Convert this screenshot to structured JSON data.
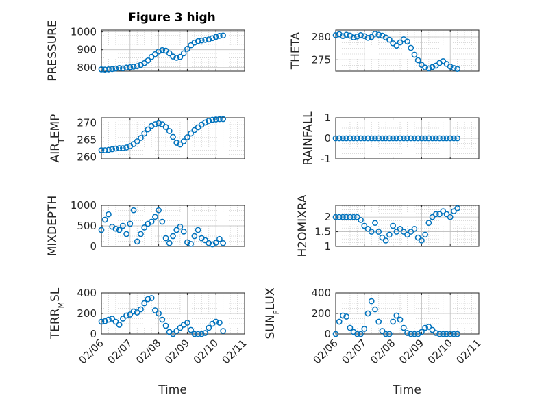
{
  "figure": {
    "title": "Figure 3 high",
    "marker_color": "#0072BD",
    "axis_color": "#262626",
    "grid": true,
    "minor_grid": true
  },
  "chart_data": [
    {
      "type": "scatter",
      "ylabel": "PRESSURE",
      "xlim": [
        "02/06",
        "02/11"
      ],
      "ylim": [
        780,
        1010
      ],
      "yticks": [
        800,
        900,
        1000
      ],
      "xticks": [],
      "x": [
        "02/06 00:00",
        "02/06 03:00",
        "02/06 06:00",
        "02/06 09:00",
        "02/06 12:00",
        "02/06 15:00",
        "02/06 18:00",
        "02/06 21:00",
        "02/07 00:00",
        "02/07 03:00",
        "02/07 06:00",
        "02/07 09:00",
        "02/07 12:00",
        "02/07 15:00",
        "02/07 18:00",
        "02/07 21:00",
        "02/08 00:00",
        "02/08 03:00",
        "02/08 06:00",
        "02/08 09:00",
        "02/08 12:00",
        "02/08 15:00",
        "02/08 18:00",
        "02/08 21:00",
        "02/09 00:00",
        "02/09 03:00",
        "02/09 06:00",
        "02/09 09:00",
        "02/09 12:00",
        "02/09 15:00",
        "02/09 18:00",
        "02/09 21:00",
        "02/10 00:00",
        "02/10 03:00",
        "02/10 06:00"
      ],
      "y": [
        790,
        789,
        790,
        792,
        795,
        798,
        796,
        800,
        802,
        805,
        808,
        815,
        825,
        840,
        860,
        875,
        890,
        898,
        895,
        880,
        862,
        855,
        860,
        880,
        905,
        925,
        940,
        948,
        952,
        955,
        958,
        965,
        972,
        978,
        980
      ]
    },
    {
      "type": "scatter",
      "ylabel": "THETA",
      "xlim": [
        "02/06",
        "02/11"
      ],
      "ylim": [
        272.5,
        281.5
      ],
      "yticks": [
        275,
        280
      ],
      "xticks": [],
      "x": [
        "02/06 00:00",
        "02/06 03:00",
        "02/06 06:00",
        "02/06 09:00",
        "02/06 12:00",
        "02/06 15:00",
        "02/06 18:00",
        "02/06 21:00",
        "02/07 00:00",
        "02/07 03:00",
        "02/07 06:00",
        "02/07 09:00",
        "02/07 12:00",
        "02/07 15:00",
        "02/07 18:00",
        "02/07 21:00",
        "02/08 00:00",
        "02/08 03:00",
        "02/08 06:00",
        "02/08 09:00",
        "02/08 12:00",
        "02/08 15:00",
        "02/08 18:00",
        "02/08 21:00",
        "02/09 00:00",
        "02/09 03:00",
        "02/09 06:00",
        "02/09 09:00",
        "02/09 12:00",
        "02/09 15:00",
        "02/09 18:00",
        "02/09 21:00",
        "02/10 00:00",
        "02/10 03:00",
        "02/10 06:00"
      ],
      "y": [
        280.4,
        280.6,
        280.2,
        280.5,
        280.3,
        279.9,
        280.1,
        280.4,
        280.2,
        279.8,
        280.0,
        280.7,
        280.5,
        280.3,
        279.9,
        279.4,
        278.6,
        278.1,
        278.8,
        279.5,
        279.0,
        277.6,
        276.1,
        274.9,
        273.9,
        273.3,
        273.1,
        273.4,
        273.7,
        274.3,
        274.7,
        274.1,
        273.5,
        273.2,
        273.0
      ]
    },
    {
      "type": "scatter",
      "ylabel": "AIR_TEMP",
      "xlim": [
        "02/06",
        "02/11"
      ],
      "ylim": [
        259.5,
        271.5
      ],
      "yticks": [
        260,
        265,
        270
      ],
      "xticks": [],
      "x": [
        "02/06 00:00",
        "02/06 03:00",
        "02/06 06:00",
        "02/06 09:00",
        "02/06 12:00",
        "02/06 15:00",
        "02/06 18:00",
        "02/06 21:00",
        "02/07 00:00",
        "02/07 03:00",
        "02/07 06:00",
        "02/07 09:00",
        "02/07 12:00",
        "02/07 15:00",
        "02/07 18:00",
        "02/07 21:00",
        "02/08 00:00",
        "02/08 03:00",
        "02/08 06:00",
        "02/08 09:00",
        "02/08 12:00",
        "02/08 15:00",
        "02/08 18:00",
        "02/08 21:00",
        "02/09 00:00",
        "02/09 03:00",
        "02/09 06:00",
        "02/09 09:00",
        "02/09 12:00",
        "02/09 15:00",
        "02/09 18:00",
        "02/09 21:00",
        "02/10 00:00",
        "02/10 03:00",
        "02/10 06:00"
      ],
      "y": [
        262.0,
        262.0,
        262.1,
        262.3,
        262.5,
        262.6,
        262.6,
        262.8,
        263.2,
        263.8,
        264.6,
        265.6,
        266.9,
        268.1,
        269.1,
        269.6,
        269.9,
        269.6,
        268.8,
        267.6,
        265.9,
        264.2,
        263.7,
        264.6,
        265.8,
        266.9,
        267.9,
        268.7,
        269.5,
        270.1,
        270.6,
        270.9,
        271.0,
        271.1,
        271.1
      ]
    },
    {
      "type": "scatter",
      "ylabel": "RAINFALL",
      "xlim": [
        "02/06",
        "02/11"
      ],
      "ylim": [
        -1,
        1
      ],
      "yticks": [
        -1,
        0,
        1
      ],
      "xticks": [],
      "x": [
        "02/06 00:00",
        "02/06 03:00",
        "02/06 06:00",
        "02/06 09:00",
        "02/06 12:00",
        "02/06 15:00",
        "02/06 18:00",
        "02/06 21:00",
        "02/07 00:00",
        "02/07 03:00",
        "02/07 06:00",
        "02/07 09:00",
        "02/07 12:00",
        "02/07 15:00",
        "02/07 18:00",
        "02/07 21:00",
        "02/08 00:00",
        "02/08 03:00",
        "02/08 06:00",
        "02/08 09:00",
        "02/08 12:00",
        "02/08 15:00",
        "02/08 18:00",
        "02/08 21:00",
        "02/09 00:00",
        "02/09 03:00",
        "02/09 06:00",
        "02/09 09:00",
        "02/09 12:00",
        "02/09 15:00",
        "02/09 18:00",
        "02/09 21:00",
        "02/10 00:00",
        "02/10 03:00",
        "02/10 06:00"
      ],
      "y": [
        0,
        0,
        0,
        0,
        0,
        0,
        0,
        0,
        0,
        0,
        0,
        0,
        0,
        0,
        0,
        0,
        0,
        0,
        0,
        0,
        0,
        0,
        0,
        0,
        0,
        0,
        0,
        0,
        0,
        0,
        0,
        0,
        0,
        0,
        0
      ]
    },
    {
      "type": "scatter",
      "ylabel": "MIXDEPTH",
      "xlim": [
        "02/06",
        "02/11"
      ],
      "ylim": [
        0,
        1000
      ],
      "yticks": [
        0,
        500,
        1000
      ],
      "xticks": [],
      "x": [
        "02/06 00:00",
        "02/06 03:00",
        "02/06 06:00",
        "02/06 09:00",
        "02/06 12:00",
        "02/06 15:00",
        "02/06 18:00",
        "02/06 21:00",
        "02/07 00:00",
        "02/07 03:00",
        "02/07 06:00",
        "02/07 09:00",
        "02/07 12:00",
        "02/07 15:00",
        "02/07 18:00",
        "02/07 21:00",
        "02/08 00:00",
        "02/08 03:00",
        "02/08 06:00",
        "02/08 09:00",
        "02/08 12:00",
        "02/08 15:00",
        "02/08 18:00",
        "02/08 21:00",
        "02/09 00:00",
        "02/09 03:00",
        "02/09 06:00",
        "02/09 09:00",
        "02/09 12:00",
        "02/09 15:00",
        "02/09 18:00",
        "02/09 21:00",
        "02/10 00:00",
        "02/10 03:00",
        "02/10 06:00"
      ],
      "y": [
        400,
        650,
        780,
        480,
        430,
        400,
        500,
        300,
        550,
        880,
        120,
        300,
        460,
        550,
        600,
        720,
        880,
        600,
        200,
        80,
        250,
        400,
        480,
        360,
        100,
        60,
        250,
        400,
        200,
        150,
        80,
        50,
        90,
        180,
        80
      ]
    },
    {
      "type": "scatter",
      "ylabel": "H2OMIXRA",
      "xlim": [
        "02/06",
        "02/11"
      ],
      "ylim": [
        1,
        2.4
      ],
      "yticks": [
        1,
        1.5,
        2
      ],
      "xticks": [],
      "x": [
        "02/06 00:00",
        "02/06 03:00",
        "02/06 06:00",
        "02/06 09:00",
        "02/06 12:00",
        "02/06 15:00",
        "02/06 18:00",
        "02/06 21:00",
        "02/07 00:00",
        "02/07 03:00",
        "02/07 06:00",
        "02/07 09:00",
        "02/07 12:00",
        "02/07 15:00",
        "02/07 18:00",
        "02/07 21:00",
        "02/08 00:00",
        "02/08 03:00",
        "02/08 06:00",
        "02/08 09:00",
        "02/08 12:00",
        "02/08 15:00",
        "02/08 18:00",
        "02/08 21:00",
        "02/09 00:00",
        "02/09 03:00",
        "02/09 06:00",
        "02/09 09:00",
        "02/09 12:00",
        "02/09 15:00",
        "02/09 18:00",
        "02/09 21:00",
        "02/10 00:00",
        "02/10 03:00",
        "02/10 06:00"
      ],
      "y": [
        2.0,
        2.0,
        2.0,
        2.0,
        2.0,
        2.0,
        2.0,
        1.9,
        1.7,
        1.6,
        1.5,
        1.8,
        1.5,
        1.3,
        1.2,
        1.4,
        1.7,
        1.5,
        1.6,
        1.5,
        1.4,
        1.5,
        1.6,
        1.3,
        1.2,
        1.4,
        1.8,
        2.0,
        2.1,
        2.1,
        2.2,
        2.1,
        2.0,
        2.2,
        2.3
      ]
    },
    {
      "type": "scatter",
      "ylabel": "TERR_MSL",
      "xlim": [
        "02/06",
        "02/11"
      ],
      "ylim": [
        0,
        400
      ],
      "yticks": [
        0,
        200,
        400
      ],
      "xticks": [
        "02/06",
        "02/07",
        "02/08",
        "02/09",
        "02/10",
        "02/11"
      ],
      "xlabel": "Time",
      "x": [
        "02/06 00:00",
        "02/06 03:00",
        "02/06 06:00",
        "02/06 09:00",
        "02/06 12:00",
        "02/06 15:00",
        "02/06 18:00",
        "02/06 21:00",
        "02/07 00:00",
        "02/07 03:00",
        "02/07 06:00",
        "02/07 09:00",
        "02/07 12:00",
        "02/07 15:00",
        "02/07 18:00",
        "02/07 21:00",
        "02/08 00:00",
        "02/08 03:00",
        "02/08 06:00",
        "02/08 09:00",
        "02/08 12:00",
        "02/08 15:00",
        "02/08 18:00",
        "02/08 21:00",
        "02/09 00:00",
        "02/09 03:00",
        "02/09 06:00",
        "02/09 09:00",
        "02/09 12:00",
        "02/09 15:00",
        "02/09 18:00",
        "02/09 21:00",
        "02/10 00:00",
        "02/10 03:00",
        "02/10 06:00"
      ],
      "y": [
        120,
        125,
        140,
        150,
        120,
        90,
        150,
        180,
        190,
        220,
        210,
        240,
        300,
        340,
        350,
        230,
        200,
        140,
        80,
        20,
        0,
        30,
        60,
        90,
        110,
        40,
        0,
        0,
        0,
        10,
        60,
        100,
        120,
        110,
        30
      ]
    },
    {
      "type": "scatter",
      "ylabel": "SUN_FLUX",
      "xlim": [
        "02/06",
        "02/11"
      ],
      "ylim": [
        0,
        400
      ],
      "yticks": [
        0,
        200,
        400
      ],
      "xticks": [
        "02/06",
        "02/07",
        "02/08",
        "02/09",
        "02/10",
        "02/11"
      ],
      "xlabel": "Time",
      "x": [
        "02/06 00:00",
        "02/06 03:00",
        "02/06 06:00",
        "02/06 09:00",
        "02/06 12:00",
        "02/06 15:00",
        "02/06 18:00",
        "02/06 21:00",
        "02/07 00:00",
        "02/07 03:00",
        "02/07 06:00",
        "02/07 09:00",
        "02/07 12:00",
        "02/07 15:00",
        "02/07 18:00",
        "02/07 21:00",
        "02/08 00:00",
        "02/08 03:00",
        "02/08 06:00",
        "02/08 09:00",
        "02/08 12:00",
        "02/08 15:00",
        "02/08 18:00",
        "02/08 21:00",
        "02/09 00:00",
        "02/09 03:00",
        "02/09 06:00",
        "02/09 09:00",
        "02/09 12:00",
        "02/09 15:00",
        "02/09 18:00",
        "02/09 21:00",
        "02/10 00:00",
        "02/10 03:00",
        "02/10 06:00"
      ],
      "y": [
        0,
        120,
        180,
        170,
        60,
        20,
        0,
        0,
        50,
        200,
        320,
        240,
        120,
        30,
        0,
        0,
        120,
        180,
        140,
        60,
        10,
        0,
        0,
        0,
        20,
        60,
        70,
        40,
        10,
        0,
        0,
        0,
        0,
        0,
        0
      ]
    }
  ]
}
